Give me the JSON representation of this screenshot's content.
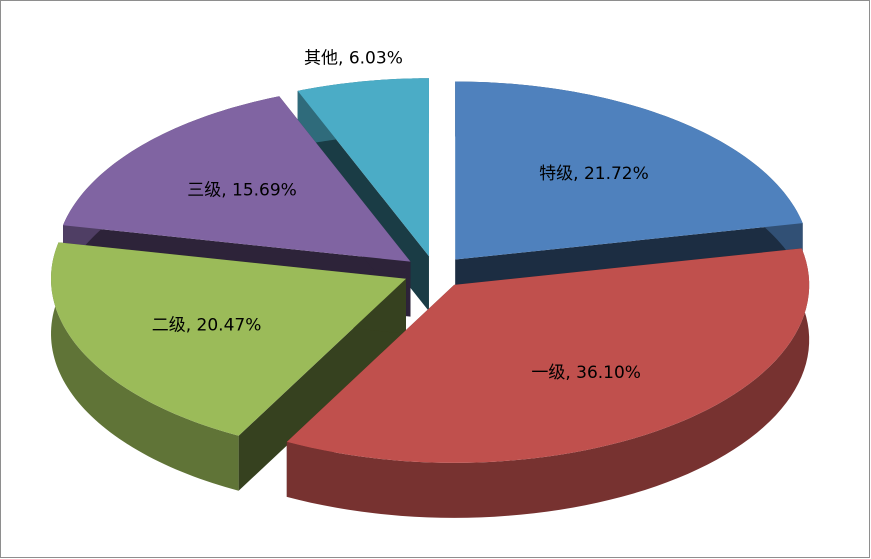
{
  "chart_data": {
    "type": "pie",
    "style": "3d-exploded",
    "values": [
      21.72,
      36.1,
      20.47,
      15.69,
      6.03
    ],
    "value_labels": [
      "特级, 21.72%",
      "一级, 36.10%",
      "二级, 20.47%",
      "三级, 15.69%",
      "其他, 6.03%"
    ],
    "colors": [
      "#4f81bd",
      "#c0504d",
      "#9bbb59",
      "#8064a2",
      "#4bacc6"
    ]
  }
}
